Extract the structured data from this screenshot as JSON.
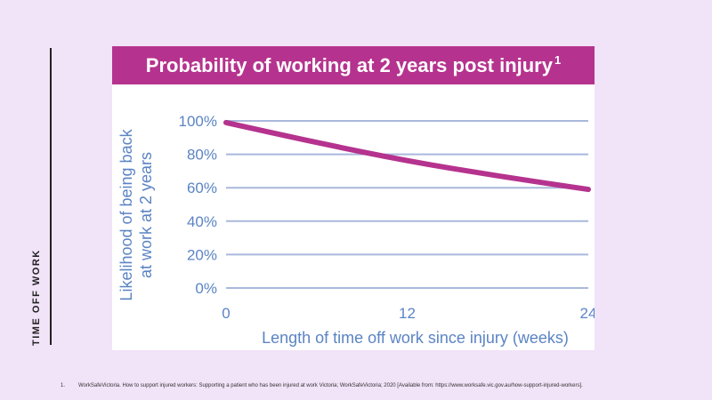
{
  "side_label": "TIME OFF WORK",
  "footnote": {
    "number": "1.",
    "text": "WorkSafeVictoria. How to support injured workers: Supporting a patient who has been injured at work Victoria; WorkSafeVictoria; 2020 [Available from: https://www.worksafe.vic.gov.au/how-support-injured-workers]."
  },
  "chart_data": {
    "type": "line",
    "title": "Probability of working at 2 years post injury",
    "title_superscript": "1",
    "xlabel": "Length of time off work since injury (weeks)",
    "ylabel_line1": "Likelihood of being back",
    "ylabel_line2": "at work at 2 years",
    "x_ticks": [
      0,
      12,
      24
    ],
    "y_ticks": [
      "0%",
      "20%",
      "40%",
      "60%",
      "80%",
      "100%"
    ],
    "xlim": [
      0,
      24
    ],
    "ylim": [
      0,
      100
    ],
    "grid": true,
    "series": [
      {
        "x": [
          0,
          6,
          12,
          18,
          24
        ],
        "values": [
          99,
          87,
          76,
          67,
          59
        ]
      }
    ],
    "colors": {
      "line": "#b5338e",
      "grid": "#a9b8dc",
      "text": "#5b84c4",
      "title_bg": "#b5338e"
    }
  }
}
